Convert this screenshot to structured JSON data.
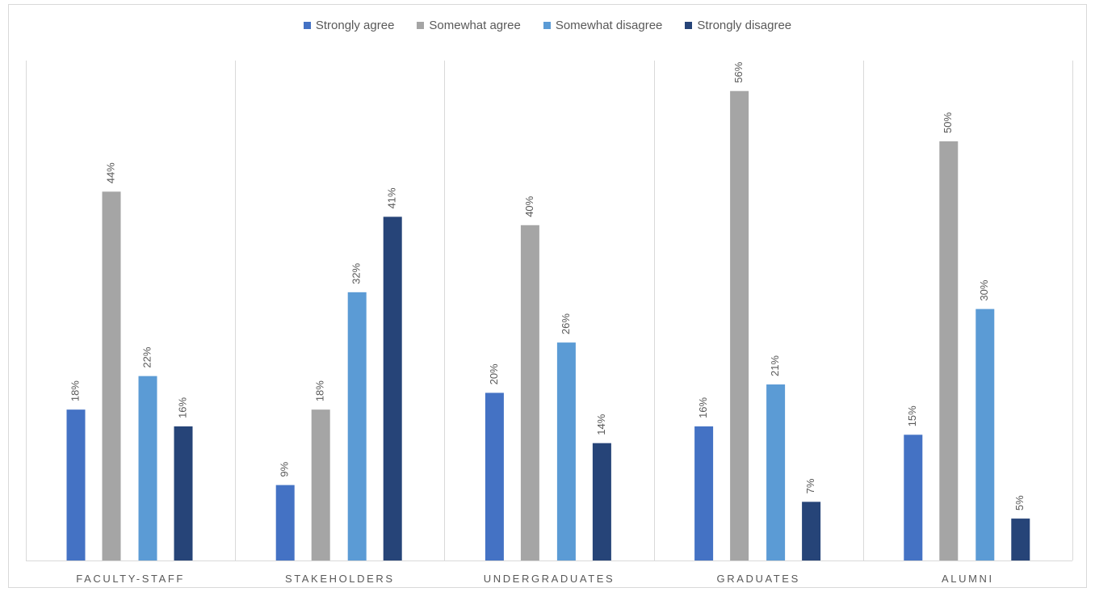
{
  "chart_data": {
    "type": "bar",
    "categories": [
      "FACULTY-STAFF",
      "STAKEHOLDERS",
      "UNDERGRADUATES",
      "GRADUATES",
      "ALUMNI"
    ],
    "series": [
      {
        "name": "Strongly agree",
        "color": "#4472c4",
        "values": [
          18,
          9,
          20,
          16,
          15
        ]
      },
      {
        "name": "Somewhat agree",
        "color": "#a5a5a5",
        "values": [
          44,
          18,
          40,
          56,
          50
        ]
      },
      {
        "name": "Somewhat disagree",
        "color": "#5b9bd5",
        "values": [
          22,
          32,
          26,
          21,
          30
        ]
      },
      {
        "name": "Strongly disagree",
        "color": "#264478",
        "values": [
          16,
          41,
          14,
          7,
          5
        ]
      }
    ],
    "data_labels": [
      [
        "18%",
        "9%",
        "20%",
        "16%",
        "15%"
      ],
      [
        "44%",
        "18%",
        "40%",
        "56%",
        "50%"
      ],
      [
        "22%",
        "32%",
        "26%",
        "21%",
        "30%"
      ],
      [
        "16%",
        "41%",
        "14%",
        "7%",
        "5%"
      ]
    ],
    "ylim": [
      0,
      60
    ],
    "legend_position": "top",
    "grid": "vertical category separators",
    "title": "",
    "xlabel": "",
    "ylabel": ""
  }
}
